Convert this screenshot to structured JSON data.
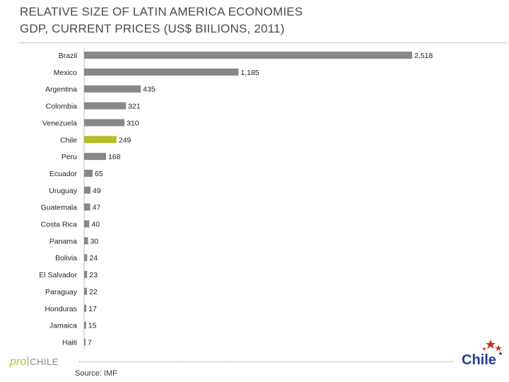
{
  "title_line1": "RELATIVE SIZE OF LATIN AMERICA ECONOMIES",
  "title_line2": "GDP, CURRENT PRICES (US$ BIILIONS, 2011)",
  "source": "Source: IMF",
  "logo_left": {
    "pro": "pro",
    "brand": "CHILE"
  },
  "logo_right": {
    "text": "Chile"
  },
  "colors": {
    "bar": "#888888",
    "highlight": "#b6bf2a",
    "logo_blue": "#1f3f8f",
    "star_red": "#d12b2b"
  },
  "chart_data": {
    "type": "bar",
    "orientation": "horizontal",
    "title": "RELATIVE SIZE OF LATIN AMERICA ECONOMIES",
    "subtitle": "GDP, CURRENT PRICES (US$ BIILIONS, 2011)",
    "categories": [
      "Brazil",
      "Mexico",
      "Argentina",
      "Colombia",
      "Venezuela",
      "Chile",
      "Peru",
      "Ecuador",
      "Uruguay",
      "Guatemala",
      "Costa Rica",
      "Panama",
      "Bolivia",
      "El Salvador",
      "Paraguay",
      "Honduras",
      "Jamaica",
      "Haiti"
    ],
    "values": [
      2518,
      1185,
      435,
      321,
      310,
      249,
      168,
      65,
      49,
      47,
      40,
      30,
      24,
      23,
      22,
      17,
      15,
      7
    ],
    "labels": [
      "2,518",
      "1,185",
      "435",
      "321",
      "310",
      "249",
      "168",
      "65",
      "49",
      "47",
      "40",
      "30",
      "24",
      "23",
      "22",
      "17",
      "15",
      "7"
    ],
    "highlight": "Chile",
    "xlim": [
      0,
      2518
    ],
    "grid": false,
    "legend": "none"
  }
}
